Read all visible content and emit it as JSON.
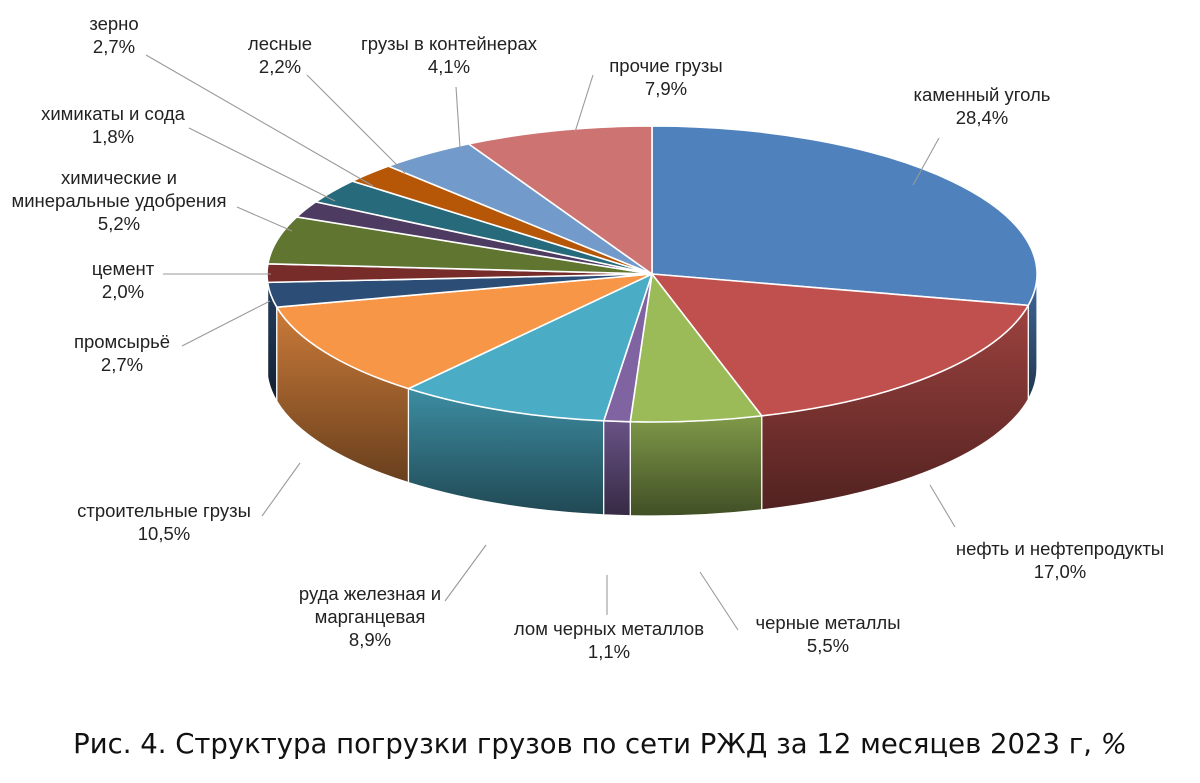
{
  "chart_data": {
    "type": "pie",
    "style": "3d",
    "unit": "%",
    "slices": [
      {
        "label_lines": [
          "каменный уголь"
        ],
        "value": 28.4,
        "value_text": "28,4%",
        "color": "#4F81BD"
      },
      {
        "label_lines": [
          "нефть и нефтепродукты"
        ],
        "value": 17.0,
        "value_text": "17,0%",
        "color": "#C0504D"
      },
      {
        "label_lines": [
          "черные металлы"
        ],
        "value": 5.5,
        "value_text": "5,5%",
        "color": "#9BBB59"
      },
      {
        "label_lines": [
          "лом черных металлов"
        ],
        "value": 1.1,
        "value_text": "1,1%",
        "color": "#8064A2"
      },
      {
        "label_lines": [
          "руда железная и",
          "марганцевая"
        ],
        "value": 8.9,
        "value_text": "8,9%",
        "color": "#4BACC6"
      },
      {
        "label_lines": [
          "строительные грузы"
        ],
        "value": 10.5,
        "value_text": "10,5%",
        "color": "#F79646"
      },
      {
        "label_lines": [
          "промсырьё"
        ],
        "value": 2.7,
        "value_text": "2,7%",
        "color": "#2C4D75"
      },
      {
        "label_lines": [
          "цемент"
        ],
        "value": 2.0,
        "value_text": "2,0%",
        "color": "#772C2A"
      },
      {
        "label_lines": [
          "химические и",
          "минеральные удобрения"
        ],
        "value": 5.2,
        "value_text": "5,2%",
        "color": "#5F7530"
      },
      {
        "label_lines": [
          "химикаты и сода"
        ],
        "value": 1.8,
        "value_text": "1,8%",
        "color": "#4D3B62"
      },
      {
        "label_lines": [
          "зерно"
        ],
        "value": 2.7,
        "value_text": "2,7%",
        "color": "#276A7C"
      },
      {
        "label_lines": [
          "лесные"
        ],
        "value": 2.2,
        "value_text": "2,2%",
        "color": "#B65708"
      },
      {
        "label_lines": [
          "грузы в контейнерах"
        ],
        "value": 4.1,
        "value_text": "4,1%",
        "color": "#729ACA"
      },
      {
        "label_lines": [
          "прочие грузы"
        ],
        "value": 7.9,
        "value_text": "7,9%",
        "color": "#CD7371"
      }
    ]
  },
  "caption": {
    "text": "Рис. 4. Структура погрузки грузов по сети РЖД за 12 месяцев 2023 г,",
    "unit": "%"
  }
}
